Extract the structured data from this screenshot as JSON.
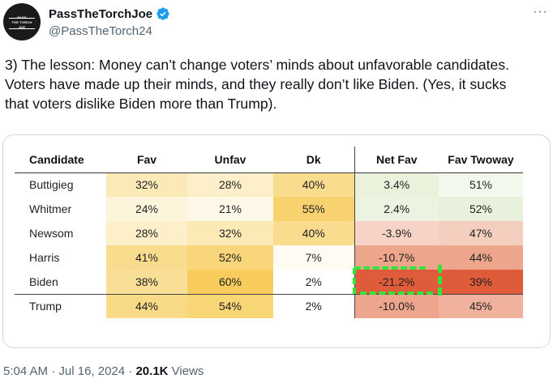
{
  "author": {
    "display_name": "PassTheTorchJoe",
    "handle": "@PassTheTorch24",
    "avatar_text": [
      "PASS",
      "THE TORCH",
      "JOE"
    ]
  },
  "more_label": "···",
  "tweet": {
    "text": "3) The lesson: Money can’t change voters’ minds about unfavorable candidates. Voters have made up their minds, and they really don’t like Biden. (Yes, it sucks that voters dislike Biden more than Trump)."
  },
  "table": {
    "headers": [
      "Candidate",
      "Fav",
      "Unfav",
      "Dk",
      "Net Fav",
      "Fav Twoway"
    ],
    "rows": [
      {
        "cells": [
          "Buttigieg",
          "32%",
          "28%",
          "40%",
          "3.4%",
          "51%"
        ],
        "colors": [
          "#ffffff",
          "#fbe9b8",
          "#fcefc9",
          "#f9dc8d",
          "#eaf2dc",
          "#f3f8ec"
        ]
      },
      {
        "cells": [
          "Whitmer",
          "24%",
          "21%",
          "55%",
          "2.4%",
          "52%"
        ],
        "colors": [
          "#ffffff",
          "#fdf4dc",
          "#fef8e9",
          "#f8d26f",
          "#ecf3e0",
          "#e8f1db"
        ]
      },
      {
        "cells": [
          "Newsom",
          "28%",
          "32%",
          "40%",
          "-3.9%",
          "47%"
        ],
        "colors": [
          "#ffffff",
          "#fcefc9",
          "#fbe9b6",
          "#f9dc8d",
          "#f6d3c6",
          "#f4cfc0"
        ]
      },
      {
        "cells": [
          "Harris",
          "41%",
          "52%",
          "7%",
          "-10.7%",
          "44%"
        ],
        "colors": [
          "#ffffff",
          "#f9dc8d",
          "#f8d679",
          "#fefbf3",
          "#eda58c",
          "#eda58b"
        ]
      },
      {
        "cells": [
          "Biden",
          "38%",
          "60%",
          "2%",
          "-21.2%",
          "39%"
        ],
        "colors": [
          "#ffffff",
          "#f9df95",
          "#f7cc5c",
          "#ffffff",
          "#e05b3a",
          "#e05b3a"
        ]
      },
      {
        "cells": [
          "Trump",
          "44%",
          "54%",
          "2%",
          "-10.0%",
          "45%"
        ],
        "colors": [
          "#ffffff",
          "#f9da86",
          "#f8d575",
          "#ffffff",
          "#eda68d",
          "#f0b29c"
        ]
      }
    ]
  },
  "meta": {
    "time": "5:04 AM",
    "separator": "·",
    "date": "Jul 16, 2024",
    "views_count": "20.1K",
    "views_label": "Views"
  },
  "colors": {
    "verified": "#1d9bf0",
    "highlight": "#35e43a",
    "secondary_text": "#536471"
  },
  "icons": [
    "verified-badge-icon",
    "more-options-icon"
  ]
}
